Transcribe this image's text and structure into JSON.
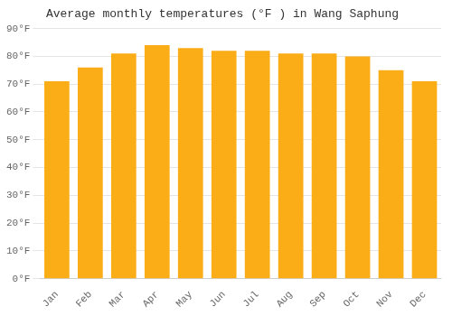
{
  "chart_data": {
    "type": "bar",
    "title": "Average monthly temperatures (°F ) in Wang Saphung",
    "categories": [
      "Jan",
      "Feb",
      "Mar",
      "Apr",
      "May",
      "Jun",
      "Jul",
      "Aug",
      "Sep",
      "Oct",
      "Nov",
      "Dec"
    ],
    "values": [
      71,
      76,
      81,
      84,
      83,
      82,
      82,
      81,
      81,
      80,
      75,
      71
    ],
    "color": "#FBAD18",
    "ylim": [
      0,
      90
    ],
    "yticks": [
      {
        "value": 0,
        "label": "0°F"
      },
      {
        "value": 10,
        "label": "10°F"
      },
      {
        "value": 20,
        "label": "20°F"
      },
      {
        "value": 30,
        "label": "30°F"
      },
      {
        "value": 40,
        "label": "40°F"
      },
      {
        "value": 50,
        "label": "50°F"
      },
      {
        "value": 60,
        "label": "60°F"
      },
      {
        "value": 70,
        "label": "70°F"
      },
      {
        "value": 80,
        "label": "80°F"
      },
      {
        "value": 90,
        "label": "90°F"
      }
    ],
    "grid": true
  }
}
